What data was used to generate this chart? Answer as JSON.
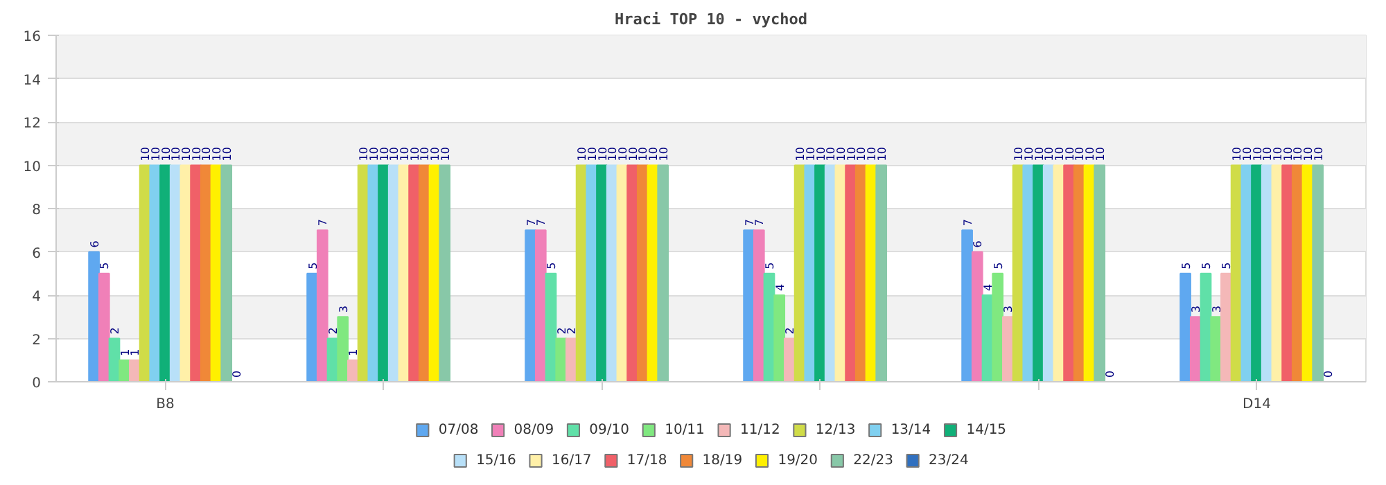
{
  "chart_data": {
    "type": "bar",
    "title": "Hraci TOP 10 - vychod",
    "categories": [
      "B8",
      null,
      null,
      null,
      null,
      "D14"
    ],
    "series": [
      {
        "name": "07/08",
        "color": "#5fa8f0",
        "values": [
          6,
          5,
          7,
          7,
          7,
          5
        ]
      },
      {
        "name": "08/09",
        "color": "#f080b8",
        "values": [
          5,
          7,
          7,
          7,
          6,
          3
        ]
      },
      {
        "name": "09/10",
        "color": "#60e0a8",
        "values": [
          2,
          2,
          5,
          5,
          4,
          5
        ]
      },
      {
        "name": "10/11",
        "color": "#80e880",
        "values": [
          1,
          3,
          2,
          4,
          5,
          3
        ]
      },
      {
        "name": "11/12",
        "color": "#f4b8b8",
        "values": [
          1,
          1,
          2,
          2,
          3,
          5
        ]
      },
      {
        "name": "12/13",
        "color": "#d0dc48",
        "values": [
          10,
          10,
          10,
          10,
          10,
          10
        ]
      },
      {
        "name": "13/14",
        "color": "#80d0f0",
        "values": [
          10,
          10,
          10,
          10,
          10,
          10
        ]
      },
      {
        "name": "14/15",
        "color": "#10b078",
        "values": [
          10,
          10,
          10,
          10,
          10,
          10
        ]
      },
      {
        "name": "15/16",
        "color": "#b8e0f8",
        "values": [
          10,
          10,
          10,
          10,
          10,
          10
        ]
      },
      {
        "name": "16/17",
        "color": "#fff0a8",
        "values": [
          10,
          10,
          10,
          10,
          10,
          10
        ]
      },
      {
        "name": "17/18",
        "color": "#f06068",
        "values": [
          10,
          10,
          10,
          10,
          10,
          10
        ]
      },
      {
        "name": "18/19",
        "color": "#f08838",
        "values": [
          10,
          10,
          10,
          10,
          10,
          10
        ]
      },
      {
        "name": "19/20",
        "color": "#fff000",
        "values": [
          10,
          10,
          10,
          10,
          10,
          10
        ]
      },
      {
        "name": "22/23",
        "color": "#88c8a8",
        "values": [
          10,
          10,
          10,
          10,
          10,
          10
        ]
      },
      {
        "name": "23/24",
        "color": "#3070c0",
        "values": [
          0,
          null,
          null,
          null,
          0,
          0
        ]
      }
    ],
    "ylim": [
      0,
      16
    ],
    "yticks": [
      0,
      2,
      4,
      6,
      8,
      10,
      12,
      14,
      16
    ],
    "grid": "y",
    "legend": "bottom",
    "data_labels": true
  }
}
